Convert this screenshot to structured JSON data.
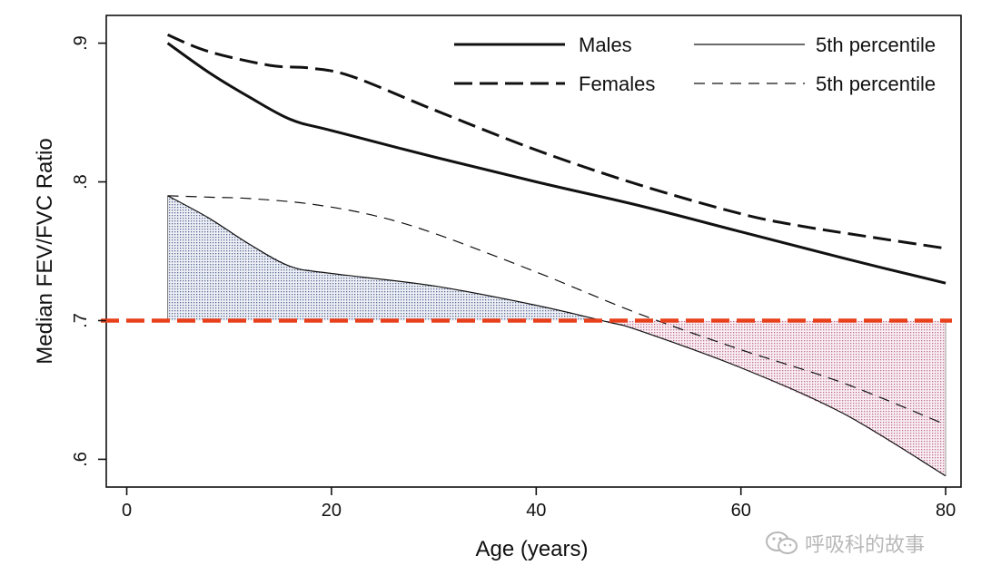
{
  "chart_data": {
    "type": "line",
    "xlabel": "Age (years)",
    "ylabel": "Median FEV/FVC Ratio",
    "xlim": [
      -2,
      81.5
    ],
    "ylim": [
      0.58,
      0.92
    ],
    "x_ticks": [
      0,
      20,
      40,
      60,
      80
    ],
    "x_tick_labels": [
      "0",
      "20",
      "40",
      "60",
      "80"
    ],
    "y_ticks": [
      0.6,
      0.7,
      0.8,
      0.9
    ],
    "y_tick_labels": [
      ".6",
      ".7",
      ".8",
      ".9"
    ],
    "grid": false,
    "legend_position": "top-right",
    "legend": {
      "males": "Males",
      "females": "Females",
      "males_p5": "5th percentile",
      "females_p5": "5th percentile"
    },
    "series": [
      {
        "name": "Males",
        "style": "solid-thick",
        "x": [
          4,
          8,
          12,
          16,
          20,
          30,
          40,
          50,
          60,
          70,
          80
        ],
        "y": [
          0.9,
          0.879,
          0.861,
          0.845,
          0.837,
          0.818,
          0.8,
          0.783,
          0.764,
          0.745,
          0.727
        ]
      },
      {
        "name": "Females",
        "style": "dashed-thick",
        "x": [
          4,
          8,
          14,
          18,
          22,
          30,
          40,
          50,
          60,
          66,
          72,
          80
        ],
        "y": [
          0.906,
          0.894,
          0.884,
          0.882,
          0.876,
          0.852,
          0.823,
          0.798,
          0.777,
          0.768,
          0.761,
          0.752
        ]
      },
      {
        "name": "5th percentile",
        "style": "solid-thin",
        "x": [
          4,
          8,
          12,
          16,
          20,
          30,
          40,
          47,
          50,
          60,
          70,
          80
        ],
        "y": [
          0.79,
          0.774,
          0.755,
          0.739,
          0.734,
          0.725,
          0.711,
          0.699,
          0.693,
          0.666,
          0.633,
          0.588
        ]
      },
      {
        "name": "5th percentile",
        "style": "dashed-thin",
        "x": [
          4,
          8,
          12,
          18,
          24,
          30,
          40,
          50,
          60,
          70,
          80
        ],
        "y": [
          0.79,
          0.789,
          0.788,
          0.784,
          0.776,
          0.763,
          0.735,
          0.705,
          0.679,
          0.655,
          0.625
        ]
      }
    ],
    "reference_line": {
      "y": 0.7,
      "color": "#e8401c",
      "style": "dashed"
    },
    "colors": {
      "reference": "#e8401c",
      "shade_above": "#8d98b8",
      "shade_below": "#d9a6bc"
    }
  },
  "watermark": {
    "icon": "wechat-icon",
    "text": "呼吸科的故事"
  }
}
